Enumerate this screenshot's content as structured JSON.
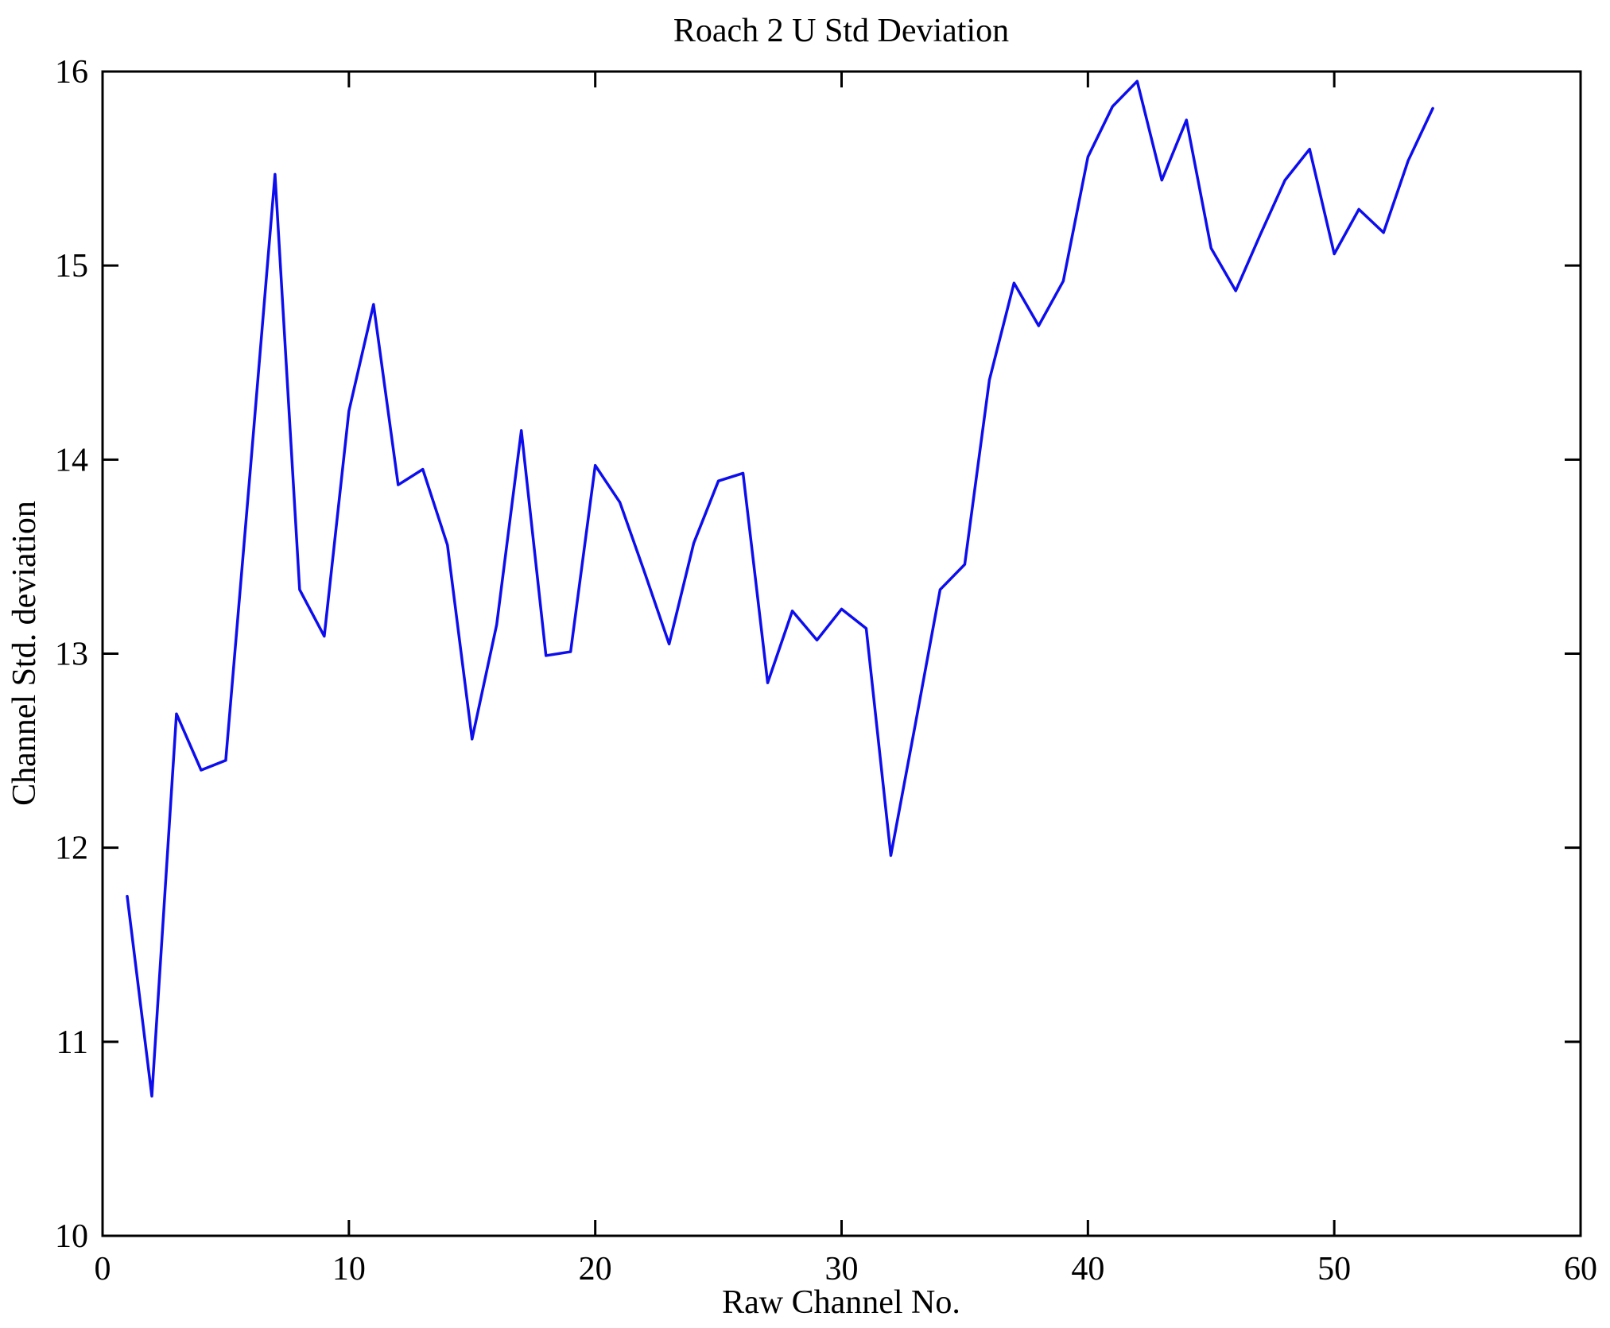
{
  "chart_data": {
    "type": "line",
    "title": "Roach 2 U Std Deviation",
    "xlabel": "Raw Channel No.",
    "ylabel": "Channel Std. deviation",
    "series": [
      {
        "name": "channel-std-deviation",
        "x": [
          1,
          2,
          3,
          4,
          5,
          6,
          7,
          8,
          9,
          10,
          11,
          12,
          13,
          14,
          15,
          16,
          17,
          18,
          19,
          20,
          21,
          22,
          23,
          24,
          25,
          26,
          27,
          28,
          29,
          30,
          31,
          32,
          33,
          34,
          35,
          36,
          37,
          38,
          39,
          40,
          41,
          42,
          43,
          44,
          45,
          46,
          47,
          48,
          49,
          50,
          51,
          52,
          53,
          54
        ],
        "values": [
          11.75,
          10.72,
          12.69,
          12.4,
          12.45,
          13.95,
          15.47,
          13.33,
          13.09,
          14.25,
          14.8,
          13.87,
          13.95,
          13.56,
          12.56,
          13.15,
          14.15,
          12.99,
          13.01,
          13.97,
          13.78,
          13.42,
          13.05,
          13.57,
          13.89,
          13.93,
          12.85,
          13.22,
          13.07,
          13.23,
          13.13,
          11.96,
          12.64,
          13.33,
          13.46,
          14.41,
          14.91,
          14.69,
          14.92,
          15.56,
          15.82,
          15.95,
          15.44,
          15.75,
          15.09,
          14.87,
          15.16,
          15.44,
          15.6,
          15.06,
          15.29,
          15.17,
          15.54,
          15.81
        ]
      }
    ],
    "xlim": [
      0,
      60
    ],
    "ylim": [
      10,
      16
    ],
    "xticks": [
      0,
      10,
      20,
      30,
      40,
      50,
      60
    ],
    "yticks": [
      10,
      11,
      12,
      13,
      14,
      15,
      16
    ],
    "grid": false,
    "legend": "none",
    "line_color": "#0D0DEE",
    "axis_color": "#000000",
    "background_color": "#FFFFFF"
  }
}
